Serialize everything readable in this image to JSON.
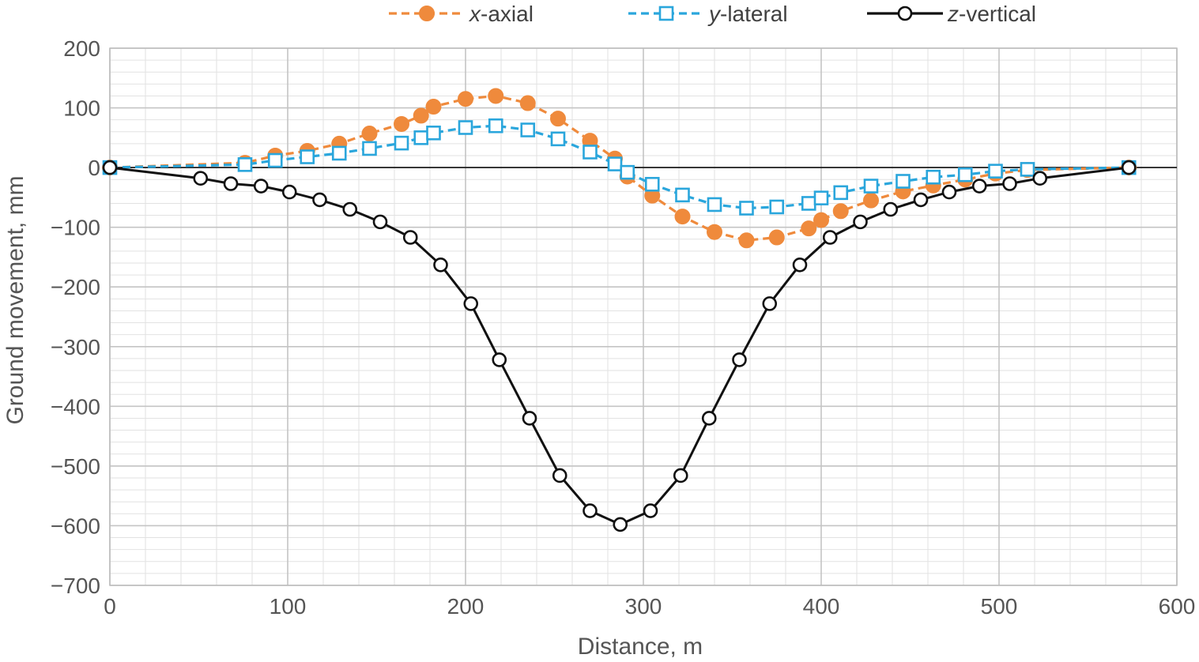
{
  "chart_data": {
    "type": "line",
    "title": "",
    "xlabel": "Distance, m",
    "ylabel": "Ground movement, mm",
    "xlim": [
      0,
      600
    ],
    "ylim": [
      -700,
      200
    ],
    "x_ticks": [
      0,
      100,
      200,
      300,
      400,
      500,
      600
    ],
    "y_ticks": [
      200,
      100,
      0,
      -100,
      -200,
      -300,
      -400,
      -500,
      -600,
      -700
    ],
    "x_tick_labels": [
      "0",
      "100",
      "200",
      "300",
      "400",
      "500",
      "600"
    ],
    "y_tick_labels": [
      "200",
      "100",
      "0",
      "−100",
      "−200",
      "−300",
      "−400",
      "−500",
      "−600",
      "−700"
    ],
    "grid": true,
    "minor_grid": true,
    "legend_position": "top",
    "series": [
      {
        "name": "x-axial",
        "name_italic": "x",
        "name_rest": "-axial",
        "color": "#ef8a3c",
        "line_style": "dashed",
        "marker": "filled-circle",
        "points": [
          [
            0,
            0
          ],
          [
            76,
            8
          ],
          [
            93,
            20
          ],
          [
            111,
            28
          ],
          [
            129,
            40
          ],
          [
            146,
            57
          ],
          [
            164,
            73
          ],
          [
            175,
            87
          ],
          [
            182,
            102
          ],
          [
            200,
            115
          ],
          [
            217,
            120
          ],
          [
            235,
            108
          ],
          [
            252,
            82
          ],
          [
            270,
            45
          ],
          [
            284,
            15
          ],
          [
            291,
            -15
          ],
          [
            305,
            -47
          ],
          [
            322,
            -82
          ],
          [
            340,
            -108
          ],
          [
            358,
            -122
          ],
          [
            375,
            -117
          ],
          [
            393,
            -102
          ],
          [
            400,
            -88
          ],
          [
            411,
            -73
          ],
          [
            428,
            -55
          ],
          [
            446,
            -40
          ],
          [
            463,
            -30
          ],
          [
            481,
            -20
          ],
          [
            498,
            -10
          ],
          [
            516,
            -4
          ],
          [
            573,
            0
          ]
        ]
      },
      {
        "name": "y-lateral",
        "name_italic": "y",
        "name_rest": "-lateral",
        "color": "#2aa6dc",
        "line_style": "dashed",
        "marker": "open-square",
        "points": [
          [
            0,
            0
          ],
          [
            76,
            5
          ],
          [
            93,
            12
          ],
          [
            111,
            18
          ],
          [
            129,
            24
          ],
          [
            146,
            32
          ],
          [
            164,
            41
          ],
          [
            175,
            50
          ],
          [
            182,
            58
          ],
          [
            200,
            67
          ],
          [
            217,
            70
          ],
          [
            235,
            63
          ],
          [
            252,
            48
          ],
          [
            270,
            26
          ],
          [
            284,
            6
          ],
          [
            291,
            -8
          ],
          [
            305,
            -28
          ],
          [
            322,
            -46
          ],
          [
            340,
            -62
          ],
          [
            358,
            -68
          ],
          [
            375,
            -66
          ],
          [
            393,
            -60
          ],
          [
            400,
            -51
          ],
          [
            411,
            -42
          ],
          [
            428,
            -31
          ],
          [
            446,
            -23
          ],
          [
            463,
            -16
          ],
          [
            481,
            -12
          ],
          [
            498,
            -6
          ],
          [
            516,
            -3
          ],
          [
            573,
            0
          ]
        ]
      },
      {
        "name": "z-vertical",
        "name_italic": "z",
        "name_rest": "-vertical",
        "color": "#111111",
        "line_style": "solid",
        "marker": "open-circle",
        "points": [
          [
            0,
            0
          ],
          [
            51,
            -18
          ],
          [
            68,
            -27
          ],
          [
            85,
            -31
          ],
          [
            101,
            -41
          ],
          [
            118,
            -54
          ],
          [
            135,
            -70
          ],
          [
            152,
            -91
          ],
          [
            169,
            -117
          ],
          [
            186,
            -163
          ],
          [
            203,
            -228
          ],
          [
            219,
            -322
          ],
          [
            236,
            -420
          ],
          [
            253,
            -516
          ],
          [
            270,
            -575
          ],
          [
            287,
            -598
          ],
          [
            304,
            -575
          ],
          [
            321,
            -516
          ],
          [
            337,
            -420
          ],
          [
            354,
            -322
          ],
          [
            371,
            -228
          ],
          [
            388,
            -163
          ],
          [
            405,
            -117
          ],
          [
            422,
            -91
          ],
          [
            439,
            -70
          ],
          [
            456,
            -54
          ],
          [
            472,
            -41
          ],
          [
            489,
            -31
          ],
          [
            506,
            -27
          ],
          [
            523,
            -18
          ],
          [
            573,
            0
          ]
        ]
      }
    ]
  }
}
